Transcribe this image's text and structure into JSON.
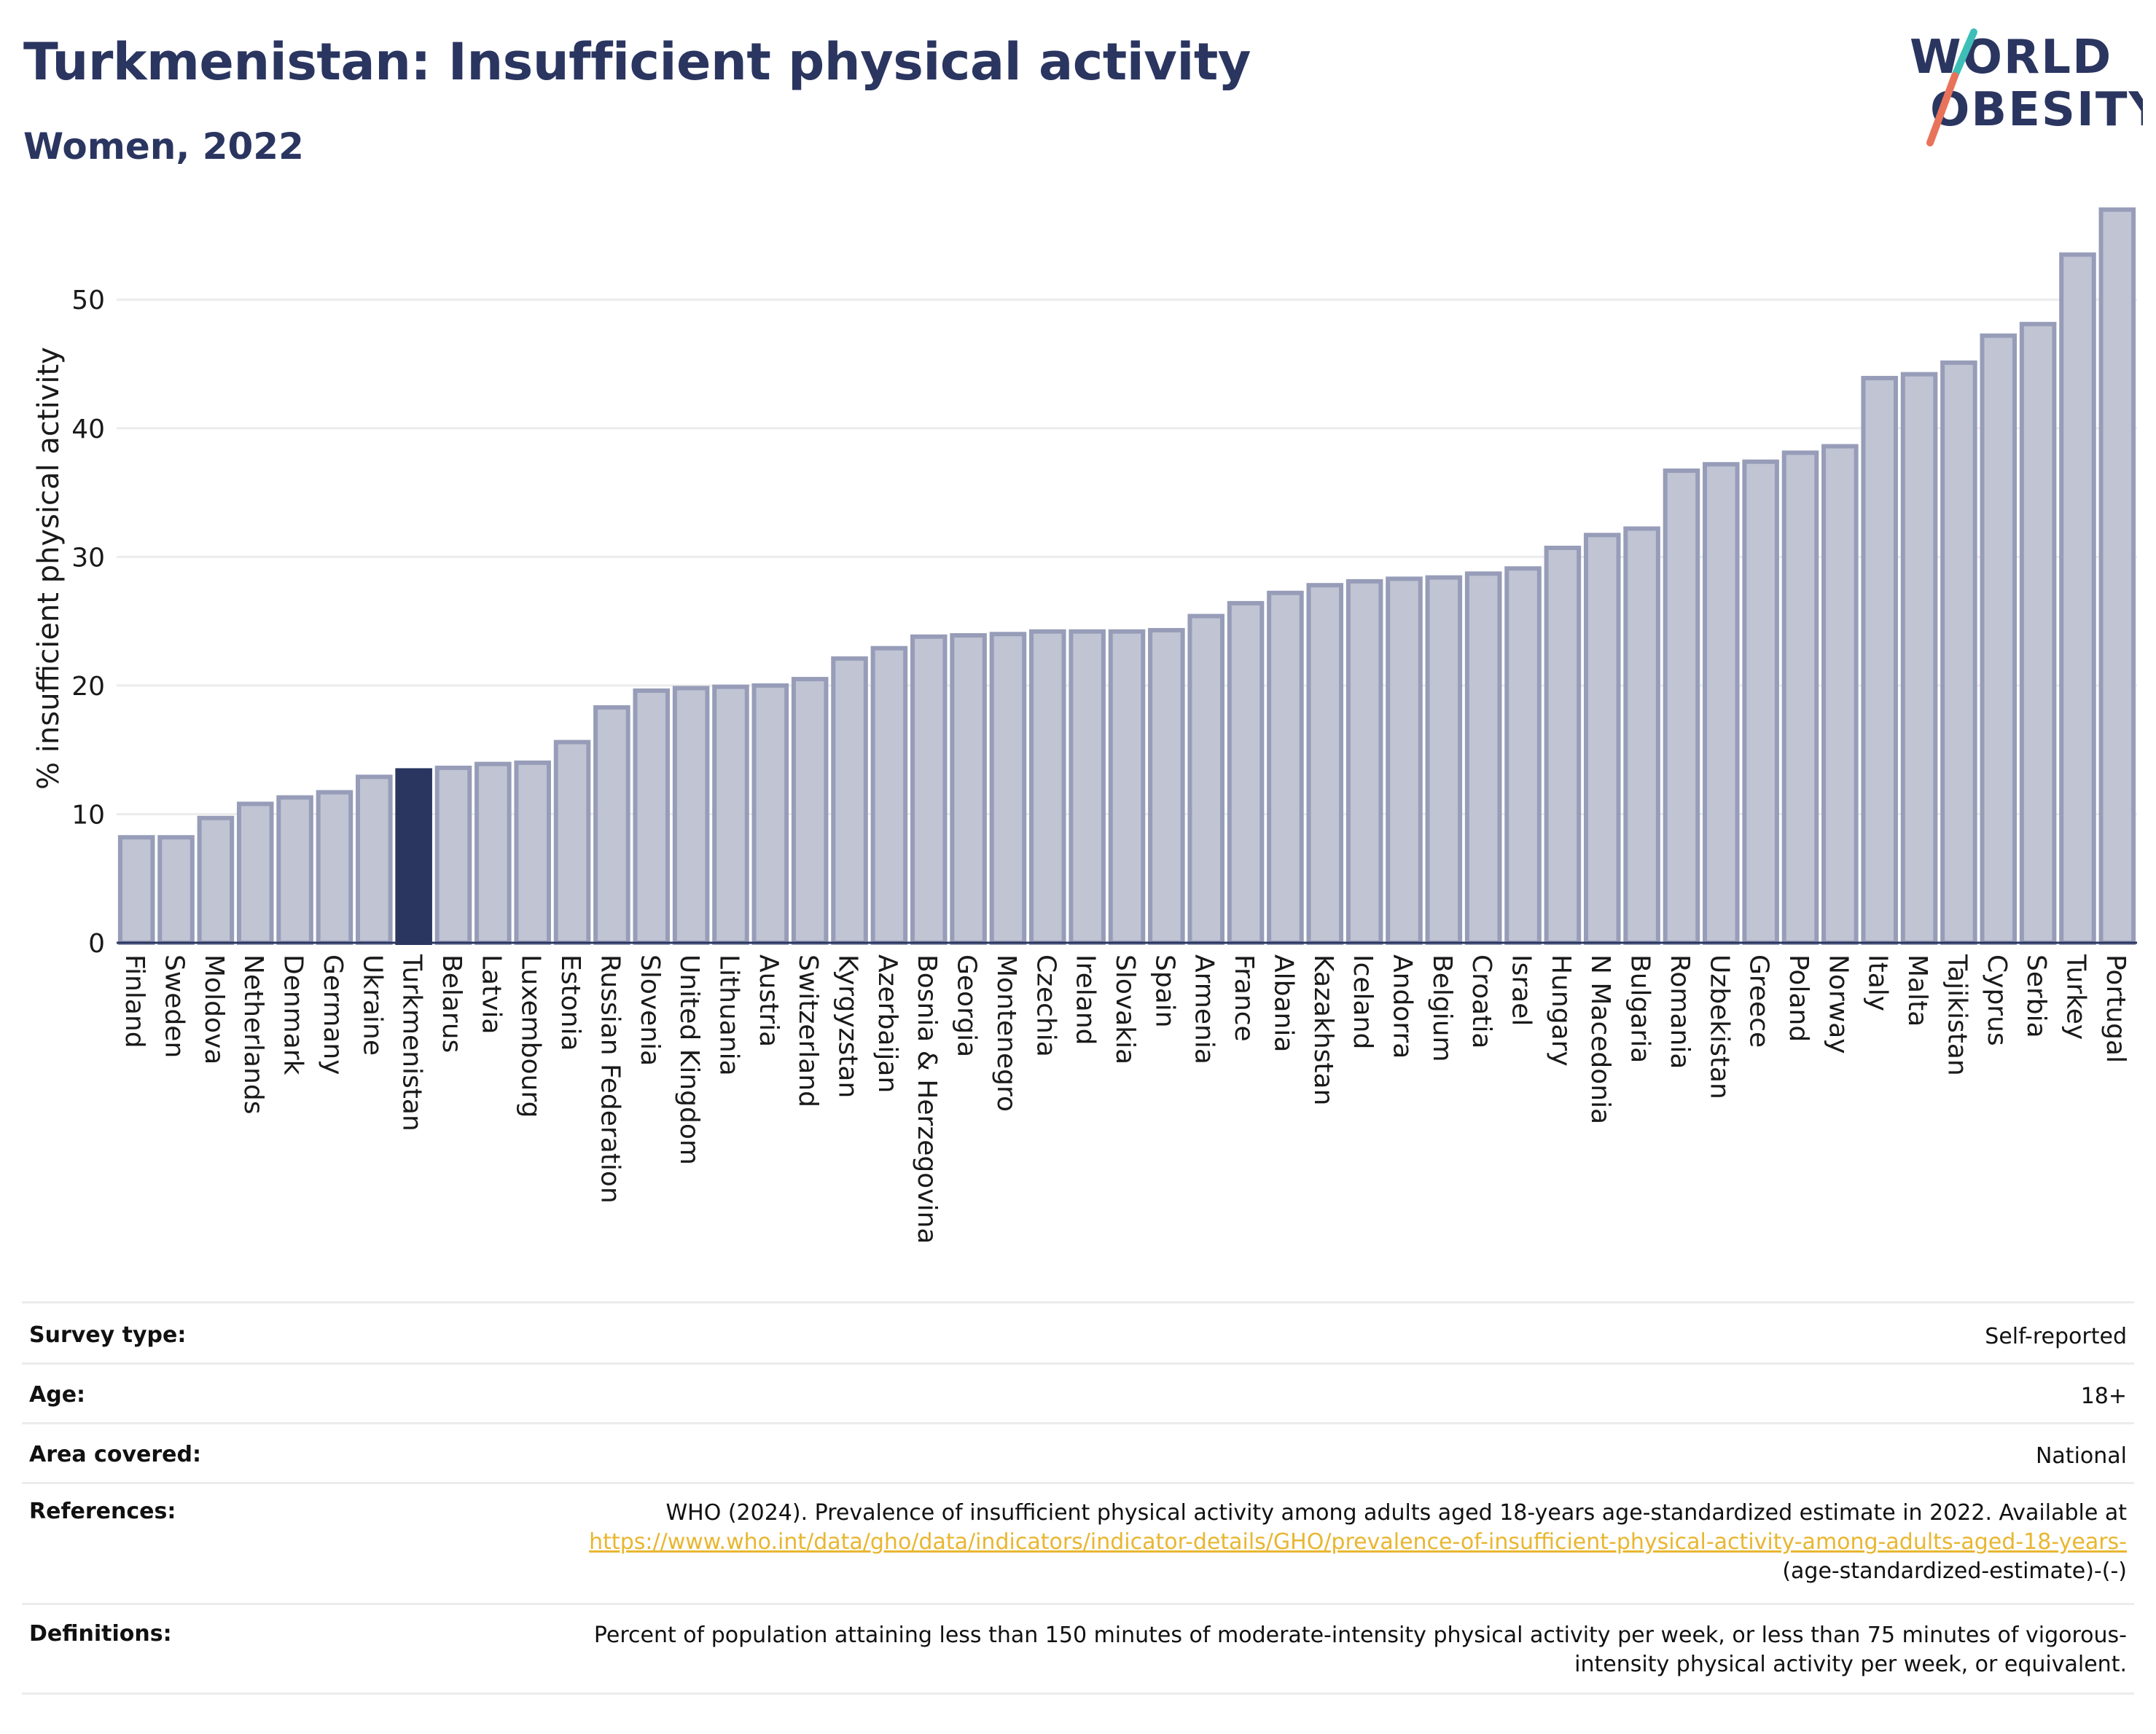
{
  "header": {
    "title": "Turkmenistan: Insufficient physical activity",
    "subtitle": "Women, 2022"
  },
  "logo": {
    "line1": "WORLD",
    "line2": "OBESITY",
    "text_color": "#2a3560",
    "slash_colors": [
      "#e8735a",
      "#3dbfb8"
    ]
  },
  "chart_data": {
    "type": "bar",
    "ylabel": "% insufficient physical activity",
    "xlabel": "",
    "ylim": [
      0,
      58
    ],
    "yticks": [
      0,
      10,
      20,
      30,
      40,
      50
    ],
    "grid": true,
    "highlight": "Turkmenistan",
    "bar_color": "#c0c4d3",
    "bar_edge_color": "#979db8",
    "highlight_color": "#2a3560",
    "categories": [
      "Finland",
      "Sweden",
      "Moldova",
      "Netherlands",
      "Denmark",
      "Germany",
      "Ukraine",
      "Turkmenistan",
      "Belarus",
      "Latvia",
      "Luxembourg",
      "Estonia",
      "Russian Federation",
      "Slovenia",
      "United Kingdom",
      "Lithuania",
      "Austria",
      "Switzerland",
      "Kyrgyzstan",
      "Azerbaijan",
      "Bosnia & Herzegovina",
      "Georgia",
      "Montenegro",
      "Czechia",
      "Ireland",
      "Slovakia",
      "Spain",
      "Armenia",
      "France",
      "Albania",
      "Kazakhstan",
      "Iceland",
      "Andorra",
      "Belgium",
      "Croatia",
      "Israel",
      "Hungary",
      "N Macedonia",
      "Bulgaria",
      "Romania",
      "Uzbekistan",
      "Greece",
      "Poland",
      "Norway",
      "Italy",
      "Malta",
      "Tajikistan",
      "Cyprus",
      "Serbia",
      "Turkey",
      "Portugal"
    ],
    "values": [
      8.2,
      8.2,
      9.7,
      10.8,
      11.3,
      11.7,
      12.9,
      13.4,
      13.6,
      13.9,
      14.0,
      15.6,
      18.3,
      19.6,
      19.8,
      19.9,
      20.0,
      20.5,
      22.1,
      22.9,
      23.8,
      23.9,
      24.0,
      24.2,
      24.2,
      24.2,
      24.3,
      25.4,
      26.4,
      27.2,
      27.8,
      28.1,
      28.3,
      28.4,
      28.7,
      29.1,
      30.7,
      31.7,
      32.2,
      36.7,
      37.2,
      37.4,
      38.1,
      38.6,
      43.9,
      44.2,
      45.1,
      47.2,
      48.1,
      53.5,
      57.0
    ]
  },
  "info": {
    "survey_type": {
      "label": "Survey type:",
      "value": "Self-reported"
    },
    "age": {
      "label": "Age:",
      "value": "18+"
    },
    "area": {
      "label": "Area covered:",
      "value": "National"
    },
    "references": {
      "label": "References:",
      "text": "WHO (2024). Prevalence of insufficient physical activity among adults aged 18-years age-standardized estimate in 2022. Available at",
      "link": "https://www.who.int/data/gho/data/indicators/indicator-details/GHO/prevalence-of-insufficient-physical-activity-among-adults-aged-18-years-",
      "suffix": "(age-standardized-estimate)-(-)"
    },
    "definitions": {
      "label": "Definitions:",
      "value": "Percent of population attaining less than 150 minutes of moderate-intensity physical activity per week, or less than 75 minutes of vigorous-intensity physical activity per week, or equivalent."
    }
  }
}
